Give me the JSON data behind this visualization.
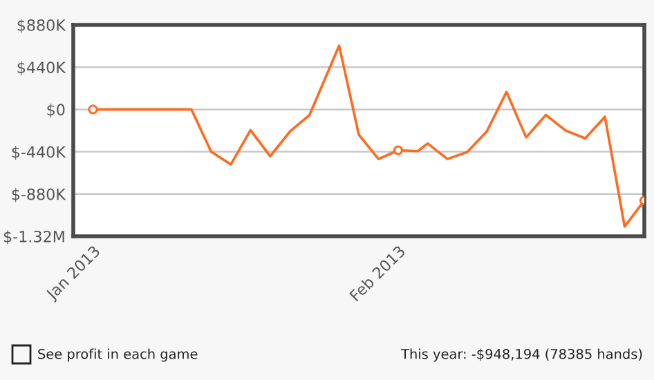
{
  "chart_data": {
    "type": "line",
    "x": [
      "2013-01-01",
      "2013-01-11",
      "2013-01-13",
      "2013-01-15",
      "2013-01-17",
      "2013-01-19",
      "2013-01-21",
      "2013-01-23",
      "2013-01-26",
      "2013-01-28",
      "2013-01-30",
      "2013-02-01",
      "2013-02-03",
      "2013-02-04",
      "2013-02-06",
      "2013-02-08",
      "2013-02-10",
      "2013-02-12",
      "2013-02-14",
      "2013-02-16",
      "2013-02-18",
      "2013-02-20",
      "2013-02-22",
      "2013-02-24",
      "2013-02-26"
    ],
    "series": [
      {
        "color": "#ff6a1f",
        "values": [
          0,
          0,
          -440000,
          -573000,
          -215000,
          -487000,
          -230000,
          -57000,
          663000,
          -262000,
          -516000,
          -425000,
          -434000,
          -354000,
          -516000,
          -444000,
          -229000,
          182000,
          -291000,
          -57000,
          -219000,
          -301000,
          -76000,
          -1218000,
          -948194
        ]
      },
      {
        "type": "scatter",
        "color": "#ff6a1f",
        "x": [
          "2013-01-01",
          "2013-02-01",
          "2013-02-26"
        ],
        "values": [
          0,
          -425000,
          -948194
        ]
      }
    ],
    "xlim": [
      "2012-12-30",
      "2013-02-26"
    ],
    "xticks": [
      {
        "value": "2013-01-01",
        "label": "Jan 2013"
      },
      {
        "value": "2013-02-01",
        "label": "Feb 2013"
      }
    ],
    "ylim": [
      -1320000,
      880000
    ],
    "yticks": [
      {
        "value": 880000,
        "label": "$880K"
      },
      {
        "value": 440000,
        "label": "$440K"
      },
      {
        "value": 0,
        "label": "$0"
      },
      {
        "value": -440000,
        "label": "$-440K"
      },
      {
        "value": -880000,
        "label": "$-880K"
      },
      {
        "value": -1320000,
        "label": "$-1.32M"
      }
    ],
    "grid": "y",
    "line_style": "solid",
    "annotations": [
      "See profit in each game",
      "This year: -$948,194 (78385 hands)"
    ]
  }
}
